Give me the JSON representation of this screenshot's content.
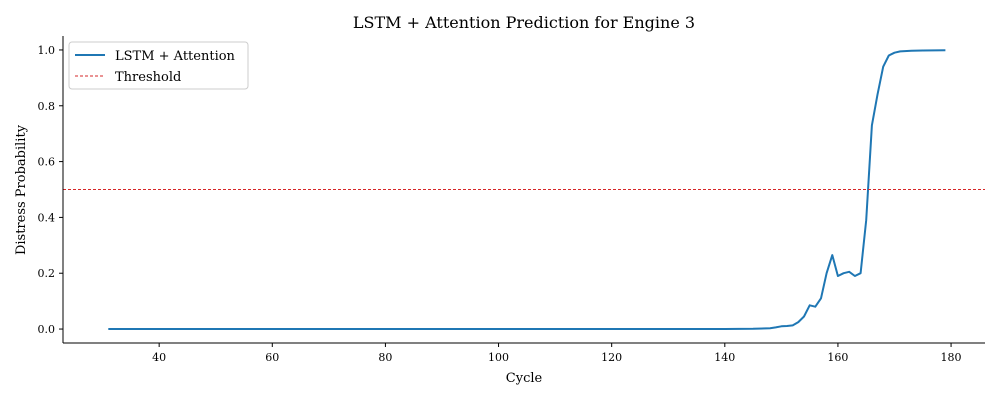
{
  "chart_data": {
    "type": "line",
    "title": "LSTM + Attention Prediction for Engine 3",
    "xlabel": "Cycle",
    "ylabel": "Distress Probability",
    "xlim": [
      23,
      186
    ],
    "ylim": [
      -0.05,
      1.05
    ],
    "x_ticks": [
      40,
      60,
      80,
      100,
      120,
      140,
      160,
      180
    ],
    "y_ticks": [
      0.0,
      0.2,
      0.4,
      0.6,
      0.8,
      1.0
    ],
    "grid": false,
    "legend_position": "upper left",
    "series": [
      {
        "name": "LSTM + Attention",
        "color": "#1f77b4",
        "style": "solid",
        "x": [
          31,
          60,
          100,
          140,
          145,
          148,
          149,
          150,
          151,
          152,
          153,
          154,
          155,
          156,
          157,
          158,
          159,
          160,
          161,
          162,
          163,
          164,
          165,
          166,
          167,
          168,
          169,
          170,
          171,
          173,
          175,
          179
        ],
        "y": [
          0.0,
          0.0,
          0.0,
          0.0,
          0.001,
          0.003,
          0.006,
          0.01,
          0.011,
          0.013,
          0.025,
          0.045,
          0.085,
          0.08,
          0.11,
          0.2,
          0.265,
          0.19,
          0.2,
          0.205,
          0.19,
          0.2,
          0.39,
          0.73,
          0.84,
          0.94,
          0.98,
          0.99,
          0.995,
          0.997,
          0.998,
          0.999
        ]
      },
      {
        "name": "Threshold",
        "color": "#d62728",
        "style": "dashed",
        "y_constant": 0.5
      }
    ]
  },
  "legend": {
    "items": [
      {
        "label": "LSTM + Attention"
      },
      {
        "label": "Threshold"
      }
    ]
  }
}
